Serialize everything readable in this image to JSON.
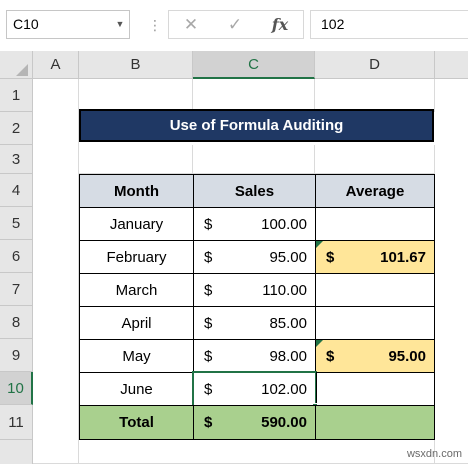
{
  "formula_bar": {
    "name_box": "C10",
    "separator": "⋮",
    "cancel_icon": "✕",
    "enter_icon": "✓",
    "fx_icon": "fx",
    "formula": "102"
  },
  "columns": [
    "A",
    "B",
    "C",
    "D"
  ],
  "rows": [
    "1",
    "2",
    "3",
    "4",
    "5",
    "6",
    "7",
    "8",
    "9",
    "10",
    "11"
  ],
  "selected_cell": {
    "column": "C",
    "row": "10"
  },
  "title": "Use of Formula Auditing",
  "table": {
    "headers": {
      "month": "Month",
      "sales": "Sales",
      "average": "Average"
    },
    "currency": "$",
    "rows": [
      {
        "month": "January",
        "sales": "100.00",
        "average": ""
      },
      {
        "month": "February",
        "sales": "95.00",
        "average": "101.67"
      },
      {
        "month": "March",
        "sales": "110.00",
        "average": ""
      },
      {
        "month": "April",
        "sales": "85.00",
        "average": ""
      },
      {
        "month": "May",
        "sales": "98.00",
        "average": "95.00"
      },
      {
        "month": "June",
        "sales": "102.00",
        "average": ""
      }
    ],
    "total": {
      "label": "Total",
      "sales": "590.00"
    }
  },
  "colors": {
    "title_fill": "#1f3864",
    "header_fill": "#d6dce4",
    "average_fill": "#ffe699",
    "total_fill": "#a9d08e",
    "excel_green": "#217346"
  },
  "watermark": "wsxdn.com"
}
